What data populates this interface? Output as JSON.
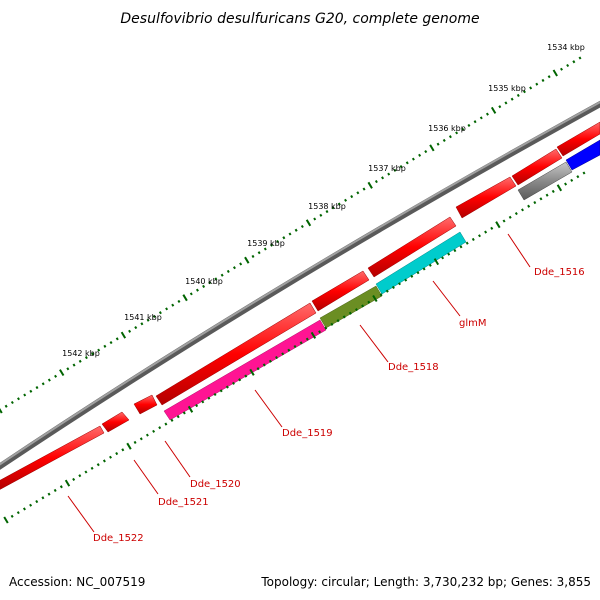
{
  "title": "Desulfovibrio desulfuricans G20, complete genome",
  "footer": {
    "accession": "Accession: NC_007519",
    "stats": "Topology: circular; Length: 3,730,232 bp; Genes: 3,855"
  },
  "scale_labels": [
    "1534 kbp",
    "1535 kbp",
    "1536 kbp",
    "1537 kbp",
    "1538 kbp",
    "1539 kbp",
    "1540 kbp",
    "1541 kbp",
    "1542 kbp"
  ],
  "gene_labels": [
    "Dde_1516",
    "glmM",
    "Dde_1518",
    "Dde_1519",
    "Dde_1520",
    "Dde_1521",
    "Dde_1522"
  ],
  "colors": {
    "backbone": "#808080",
    "forward_genes": "#ff0000",
    "glmM": "#00cccc",
    "Dde_1518": "#6b8e23",
    "Dde_1519": "#ff1493",
    "Dde_1516": "#666666",
    "blue_gene": "#0000ff",
    "ticks": "#006400",
    "labels": "#cc0000"
  }
}
